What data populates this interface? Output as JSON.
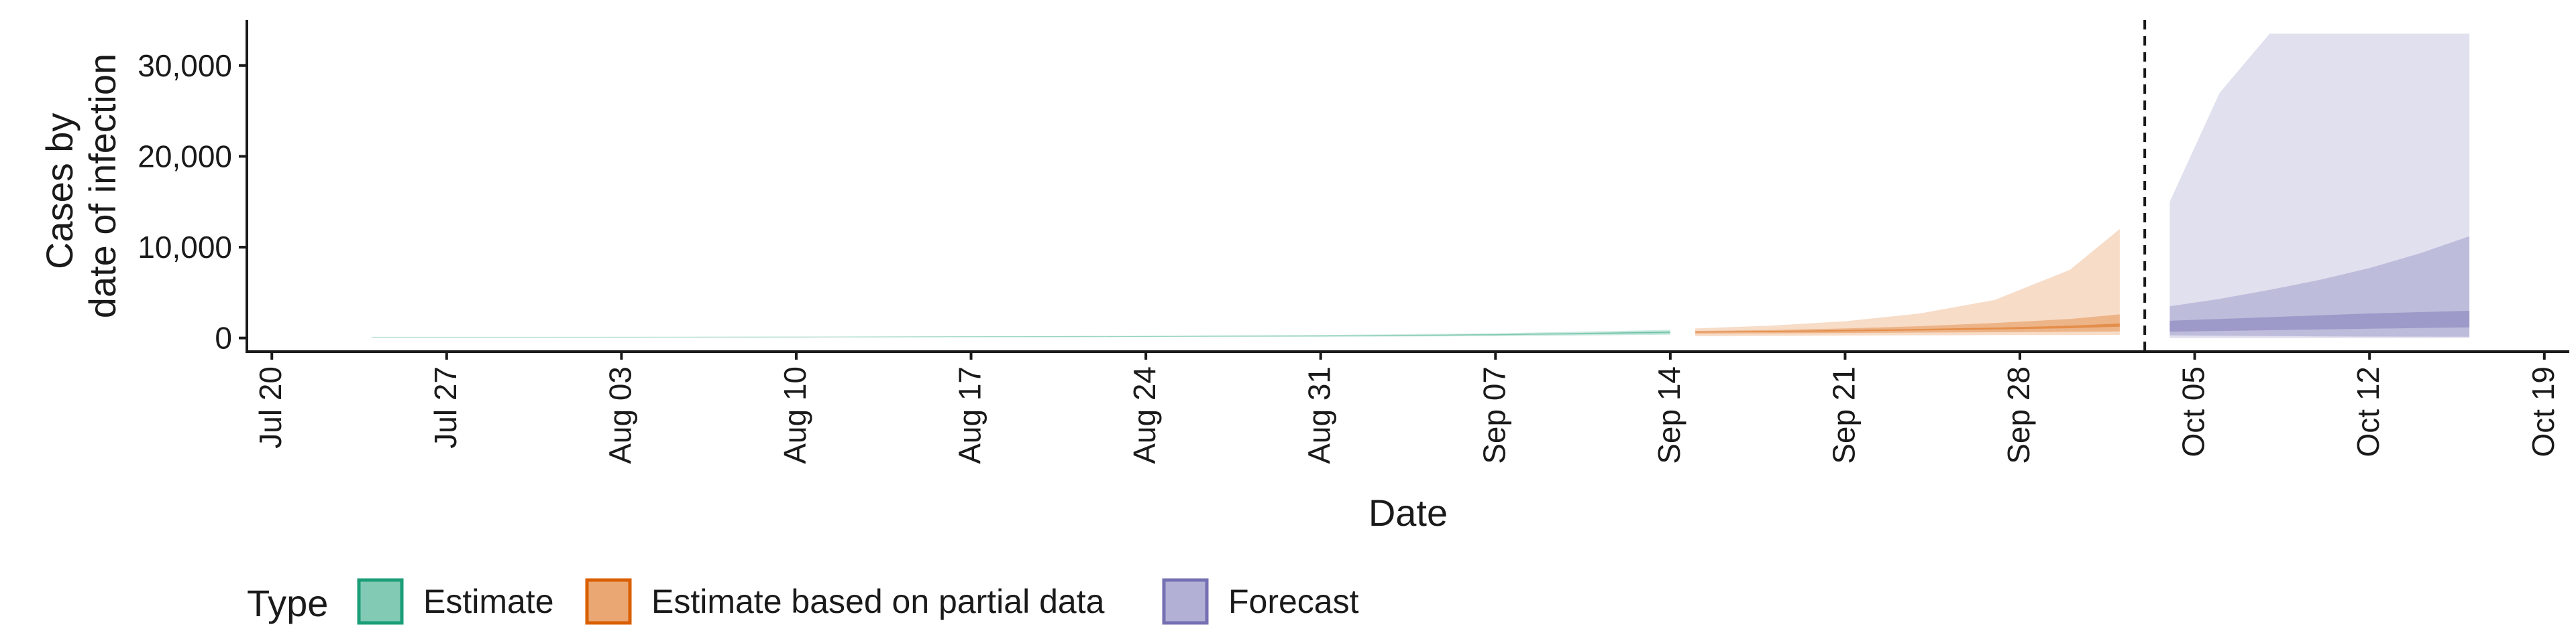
{
  "chart_data": {
    "type": "area",
    "ylabel_lines": [
      "Cases by",
      "date of infection"
    ],
    "xlabel": "Date",
    "y_ticks": [
      0,
      10000,
      20000,
      30000
    ],
    "y_tick_labels": [
      "0",
      "10,000",
      "20,000",
      "30,000"
    ],
    "ylim": [
      -1500,
      35000
    ],
    "x_tick_dates": [
      "2020-07-20",
      "2020-07-27",
      "2020-08-03",
      "2020-08-10",
      "2020-08-17",
      "2020-08-24",
      "2020-08-31",
      "2020-09-07",
      "2020-09-14",
      "2020-09-21",
      "2020-09-28",
      "2020-10-05",
      "2020-10-12",
      "2020-10-19"
    ],
    "x_tick_labels": [
      "Jul 20",
      "Jul 27",
      "Aug 03",
      "Aug 10",
      "Aug 17",
      "Aug 24",
      "Aug 31",
      "Sep 07",
      "Sep 14",
      "Sep 21",
      "Sep 28",
      "Oct 05",
      "Oct 12",
      "Oct 19"
    ],
    "xlim": [
      "2020-07-19",
      "2020-10-20"
    ],
    "forecast_start_date": "2020-10-03",
    "colors": {
      "Estimate": "#1b9e77",
      "Estimate based on partial data": "#d95f02",
      "Forecast": "#7570b3"
    },
    "series": [
      {
        "name": "Estimate",
        "x": [
          "2020-07-24",
          "2020-08-01",
          "2020-08-10",
          "2020-08-20",
          "2020-08-31",
          "2020-09-07",
          "2020-09-14"
        ],
        "bands": [
          {
            "lower": [
              45,
              50,
              60,
              80,
              130,
              200,
              360
            ],
            "upper": [
              130,
              140,
              160,
              210,
              330,
              520,
              900
            ]
          },
          {
            "lower": [
              70,
              78,
              90,
              120,
              190,
              300,
              520
            ],
            "upper": [
              105,
              115,
              130,
              170,
              270,
              420,
              730
            ]
          },
          {
            "lower": [
              82,
              92,
              106,
              140,
              225,
              355,
              610
            ],
            "upper": [
              94,
              104,
              118,
              157,
              250,
              390,
              670
            ]
          }
        ]
      },
      {
        "name": "Estimate based on partial data",
        "x": [
          "2020-09-15",
          "2020-09-18",
          "2020-09-21",
          "2020-09-24",
          "2020-09-27",
          "2020-09-30",
          "2020-10-02"
        ],
        "bands": [
          {
            "lower": [
              200,
              230,
              280,
              300,
              320,
              330,
              340
            ],
            "upper": [
              1050,
              1350,
              1850,
              2700,
              4200,
              7500,
              12000
            ]
          },
          {
            "lower": [
              480,
              520,
              560,
              600,
              640,
              680,
              720
            ],
            "upper": [
              780,
              880,
              1050,
              1300,
              1650,
              2100,
              2600
            ]
          },
          {
            "lower": [
              600,
              660,
              740,
              830,
              940,
              1080,
              1250
            ],
            "upper": [
              700,
              780,
              880,
              1000,
              1150,
              1350,
              1600
            ]
          }
        ]
      },
      {
        "name": "Forecast",
        "x": [
          "2020-10-04",
          "2020-10-06",
          "2020-10-08",
          "2020-10-10",
          "2020-10-12",
          "2020-10-14",
          "2020-10-16"
        ],
        "bands": [
          {
            "lower": [
              0,
              0,
              0,
              0,
              0,
              0,
              0
            ],
            "upper": [
              15000,
              27000,
              33500,
              33500,
              33500,
              33500,
              33500
            ]
          },
          {
            "lower": [
              300,
              250,
              210,
              180,
              160,
              150,
              140
            ],
            "upper": [
              3500,
              4300,
              5300,
              6400,
              7700,
              9300,
              11200
            ]
          },
          {
            "lower": [
              700,
              780,
              860,
              940,
              1020,
              1100,
              1180
            ],
            "upper": [
              1900,
              2100,
              2300,
              2500,
              2700,
              2850,
              3000
            ]
          }
        ]
      }
    ],
    "legend": {
      "title": "Type",
      "position": "bottom",
      "items": [
        "Estimate",
        "Estimate based on partial data",
        "Forecast"
      ]
    },
    "grid": false
  }
}
